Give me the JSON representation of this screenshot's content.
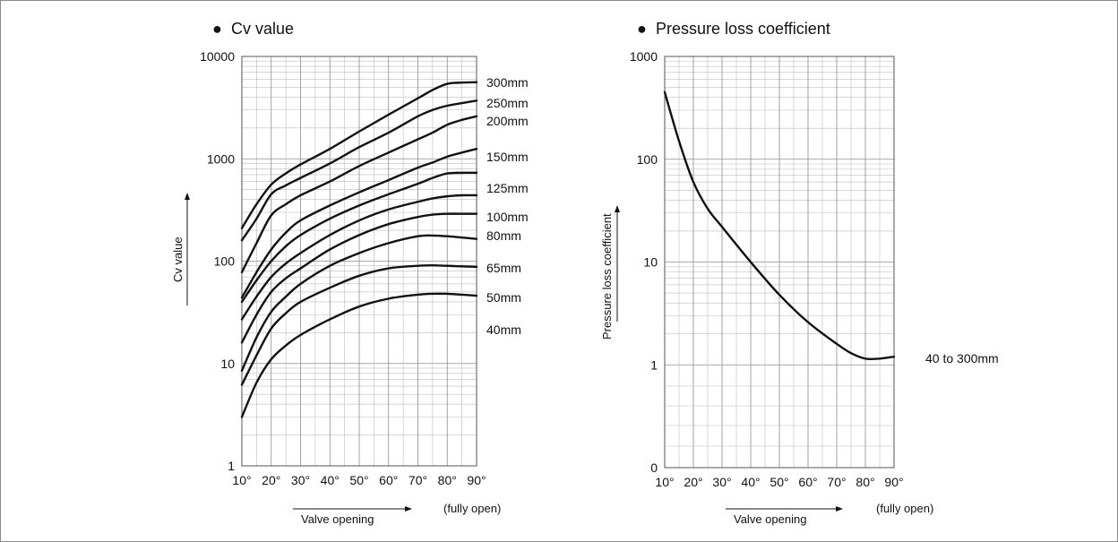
{
  "chart_data": [
    {
      "type": "line",
      "title": "Cv value",
      "title_marker": "●",
      "xlabel": "Valve opening",
      "xlabel_suffix": "(fully open)",
      "ylabel": "Cv value",
      "yscale": "log",
      "ylim": [
        1,
        10000
      ],
      "xlim": [
        10,
        90
      ],
      "x_ticks": [
        "10°",
        "20°",
        "30°",
        "40°",
        "50°",
        "60°",
        "70°",
        "80°",
        "90°"
      ],
      "y_ticks": [
        "1",
        "10",
        "100",
        "1000",
        "10000"
      ],
      "grid": true,
      "x": [
        10,
        15,
        20,
        25,
        30,
        40,
        50,
        60,
        70,
        75,
        80,
        85,
        90
      ],
      "series": [
        {
          "name": "300mm",
          "values": [
            210,
            360,
            560,
            720,
            880,
            1250,
            1850,
            2700,
            3900,
            4700,
            5400,
            5550,
            5600
          ]
        },
        {
          "name": "250mm",
          "values": [
            160,
            260,
            450,
            550,
            650,
            900,
            1300,
            1800,
            2600,
            3000,
            3300,
            3500,
            3700
          ]
        },
        {
          "name": "200mm",
          "values": [
            78,
            150,
            280,
            360,
            440,
            600,
            850,
            1150,
            1550,
            1800,
            2150,
            2400,
            2600
          ]
        },
        {
          "name": "150mm",
          "values": [
            44,
            78,
            130,
            190,
            250,
            350,
            470,
            620,
            820,
            920,
            1050,
            1150,
            1250
          ]
        },
        {
          "name": "125mm",
          "values": [
            40,
            65,
            100,
            140,
            180,
            260,
            350,
            450,
            570,
            650,
            720,
            730,
            730
          ]
        },
        {
          "name": "100mm",
          "values": [
            27,
            45,
            70,
            95,
            120,
            180,
            250,
            320,
            380,
            410,
            430,
            440,
            440
          ]
        },
        {
          "name": "80mm",
          "values": [
            16,
            30,
            50,
            68,
            85,
            130,
            180,
            230,
            270,
            285,
            290,
            290,
            290
          ]
        },
        {
          "name": "65mm",
          "values": [
            8.5,
            18,
            32,
            45,
            60,
            90,
            120,
            150,
            175,
            178,
            175,
            170,
            165
          ]
        },
        {
          "name": "50mm",
          "values": [
            6.2,
            12,
            22,
            31,
            40,
            55,
            72,
            85,
            90,
            91,
            90,
            89,
            88
          ]
        },
        {
          "name": "40mm",
          "values": [
            3,
            6.5,
            11,
            15,
            19,
            27,
            36,
            43,
            47,
            48,
            48,
            47,
            46
          ]
        }
      ]
    },
    {
      "type": "line",
      "title": "Pressure loss coefficient",
      "title_marker": "●",
      "xlabel": "Valve opening",
      "xlabel_suffix": "(fully open)",
      "ylabel": "Pressure loss coefficient",
      "yscale": "log",
      "ylim_ticks": [
        "0",
        "1",
        "10",
        "100",
        "1000"
      ],
      "xlim": [
        10,
        90
      ],
      "x_ticks": [
        "10°",
        "20°",
        "30°",
        "40°",
        "50°",
        "60°",
        "70°",
        "80°",
        "90°"
      ],
      "y_ticks": [
        "0",
        "1",
        "10",
        "100",
        "1000"
      ],
      "grid": true,
      "x": [
        10,
        15,
        20,
        25,
        30,
        40,
        50,
        60,
        70,
        75,
        80,
        85,
        90
      ],
      "series": [
        {
          "name": "40 to 300mm",
          "values": [
            450,
            150,
            60,
            33,
            22,
            10,
            4.8,
            2.6,
            1.6,
            1.3,
            1.15,
            1.15,
            1.2
          ]
        }
      ]
    }
  ]
}
